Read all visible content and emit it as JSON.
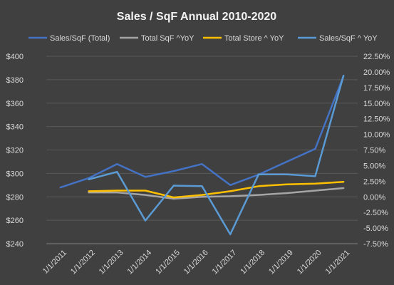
{
  "chart_data": {
    "type": "line",
    "title": "Sales /  SqF Annual 2010-2020",
    "categories": [
      "1/1/2011",
      "1/1/2012",
      "1/1/2013",
      "1/1/2014",
      "1/1/2015",
      "1/1/2016",
      "1/1/2017",
      "1/1/2018",
      "1/1/2019",
      "1/1/2020",
      "1/1/2021"
    ],
    "y_left": {
      "ylim": [
        240,
        400
      ],
      "ticks": [
        240,
        260,
        280,
        300,
        320,
        340,
        360,
        380,
        400
      ],
      "tick_labels": [
        "$240",
        "$260",
        "$280",
        "$300",
        "$320",
        "$340",
        "$360",
        "$380",
        "$400"
      ]
    },
    "y_right": {
      "ylim": [
        -7.5,
        22.5
      ],
      "ticks": [
        -7.5,
        -5,
        -2.5,
        0,
        2.5,
        5,
        7.5,
        10,
        12.5,
        15,
        17.5,
        20,
        22.5
      ],
      "tick_labels": [
        "-7.50%",
        "-5.00%",
        "-2.50%",
        "0.00%",
        "2.50%",
        "5.00%",
        "7.50%",
        "10.00%",
        "12.50%",
        "15.00%",
        "17.50%",
        "20.00%",
        "22.50%"
      ]
    },
    "grid": true,
    "legend_position": "top",
    "series": [
      {
        "name": "Sales/SqF (Total)",
        "axis": "left",
        "color": "#4472C4",
        "values": [
          288,
          296,
          308,
          297,
          302,
          308,
          290,
          299,
          310,
          321,
          383
        ]
      },
      {
        "name": "Total SqF ^YoY",
        "axis": "right",
        "color": "#A5A5A5",
        "values": [
          null,
          0.7,
          0.7,
          0.3,
          -0.3,
          0.0,
          0.1,
          0.3,
          0.6,
          1.0,
          1.4
        ]
      },
      {
        "name": "Total Store ^ YoY",
        "axis": "right",
        "color": "#FFC000",
        "values": [
          null,
          0.9,
          1.0,
          1.0,
          -0.1,
          0.3,
          0.9,
          1.7,
          2.0,
          2.1,
          2.4
        ]
      },
      {
        "name": "Sales/SqF ^ YoY",
        "axis": "right",
        "color": "#5B9BD5",
        "values": [
          null,
          2.8,
          4.0,
          -3.8,
          1.8,
          1.7,
          -6.0,
          3.6,
          3.6,
          3.3,
          19.4
        ]
      }
    ]
  }
}
